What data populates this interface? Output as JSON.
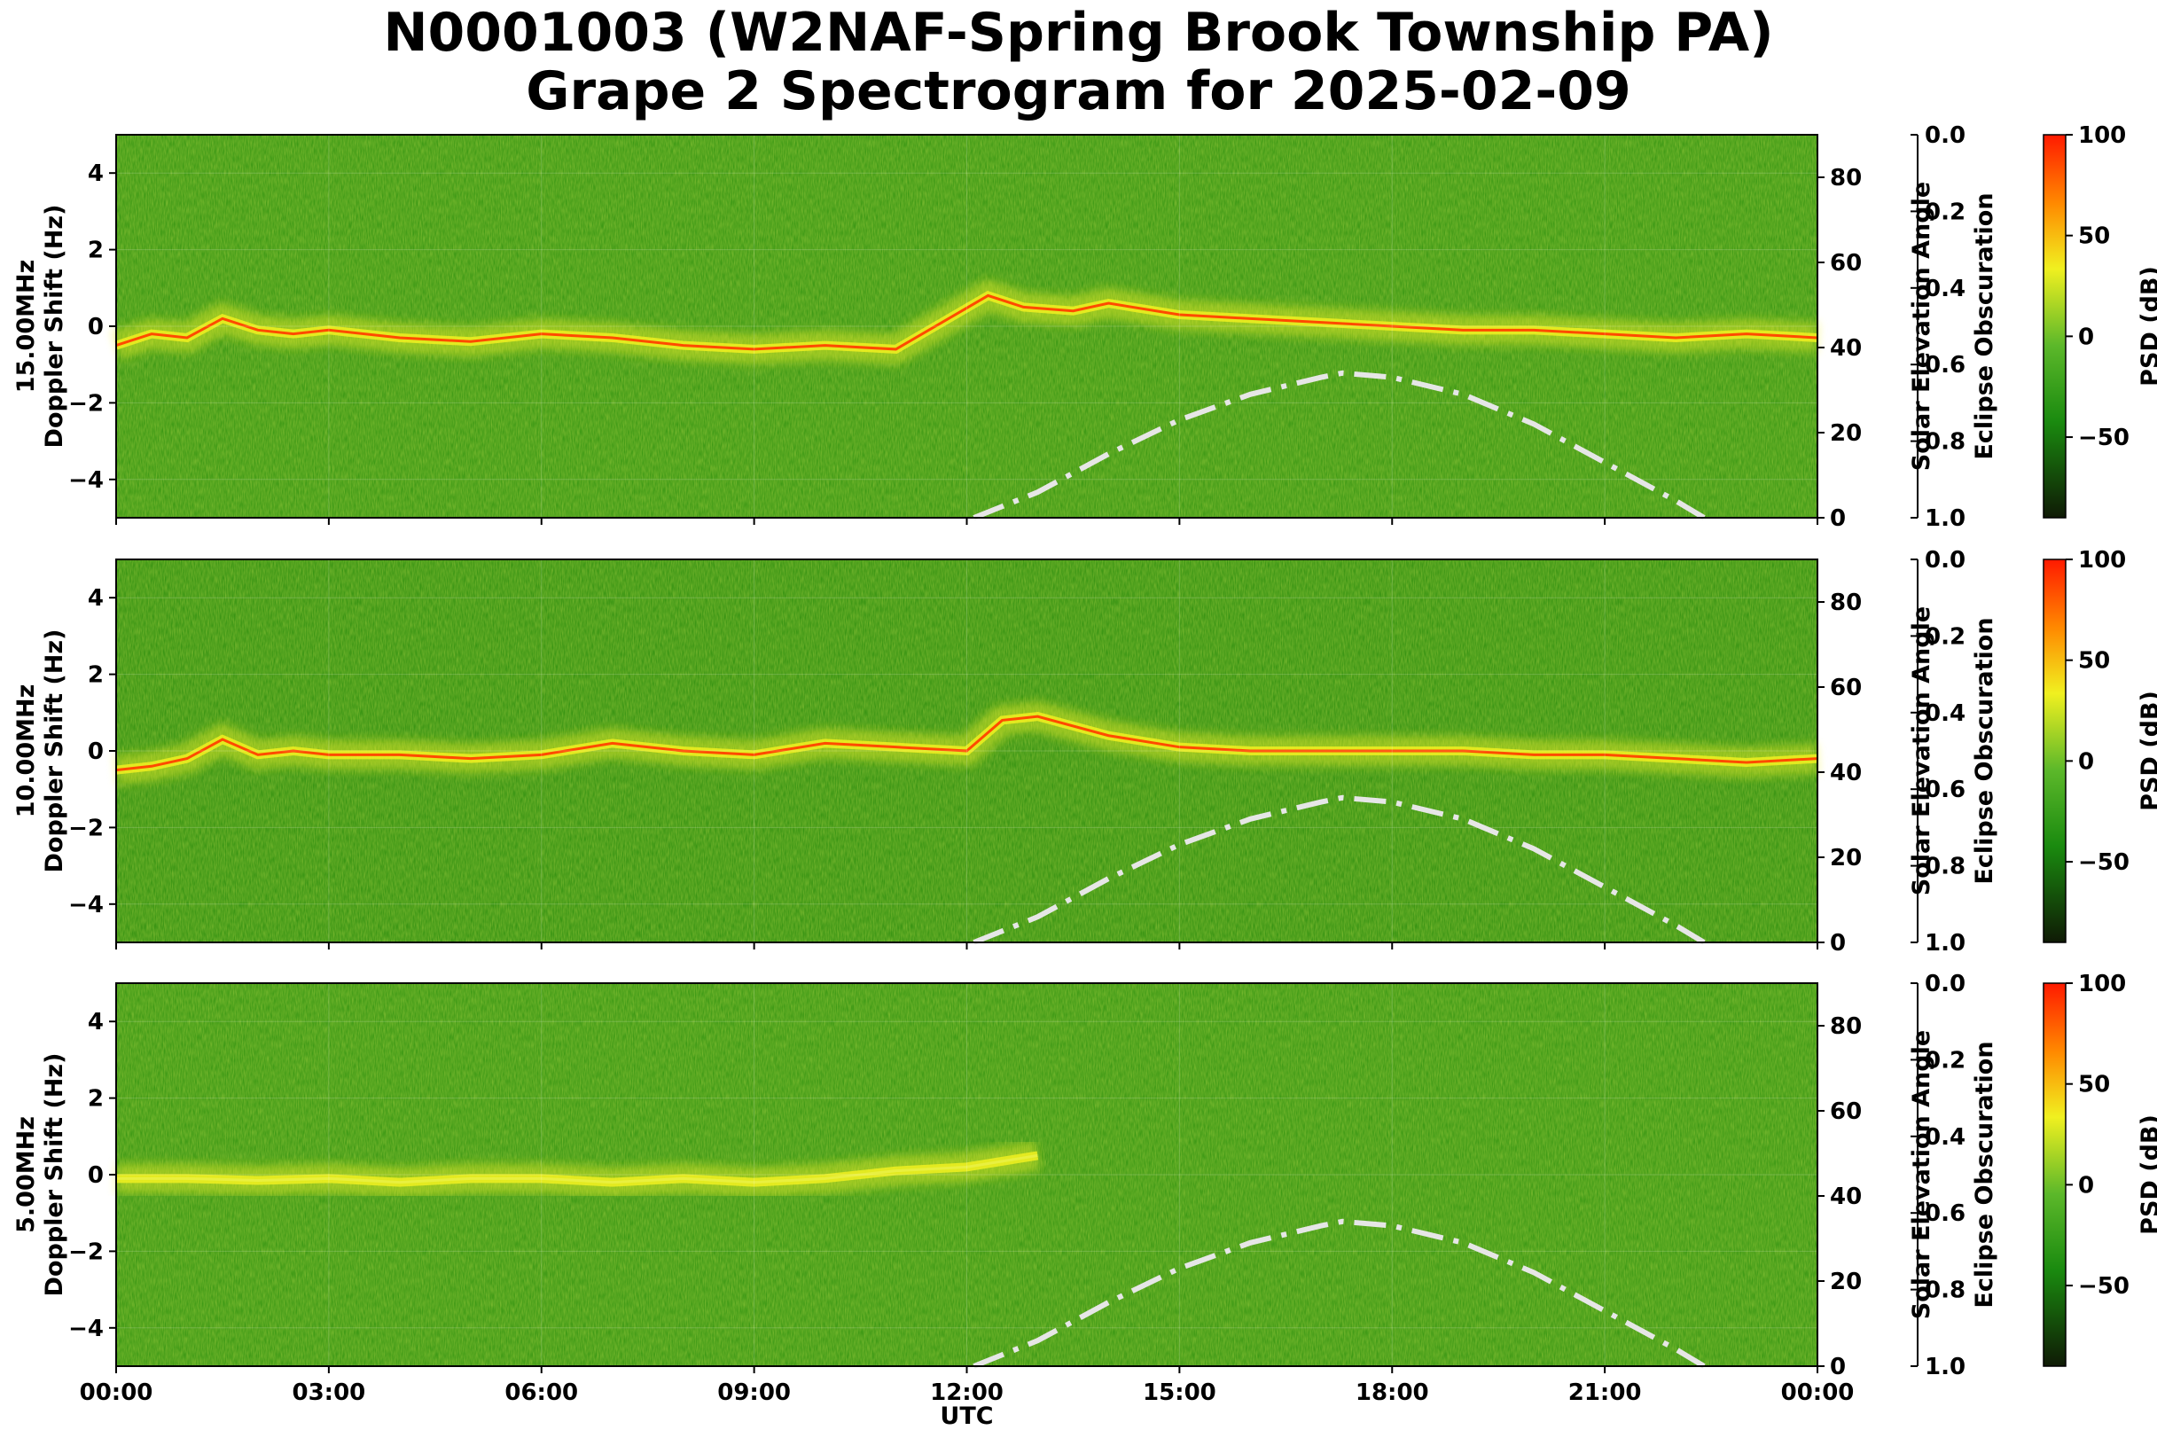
{
  "title": {
    "line1": "N0001003 (W2NAF-Spring Brook Township PA)",
    "line2": "Grape 2 Spectrogram for 2025-02-09"
  },
  "colors": {
    "spectrogram_low": "#0f1a05",
    "spectrogram_mid": "#1a8a0f",
    "spectrogram_high_a": "#f0f020",
    "spectrogram_high_b": "#ff1a00",
    "solar_curve": "#e6e6e6"
  },
  "chart_data": {
    "type": "heatmap",
    "xlabel": "UTC",
    "x_ticks": [
      "00:00",
      "03:00",
      "06:00",
      "09:00",
      "12:00",
      "15:00",
      "18:00",
      "21:00",
      "00:00"
    ],
    "x_range_hours": [
      0,
      24
    ],
    "legend": "none",
    "grid": true,
    "panels": [
      {
        "ylabel_line1": "15.00MHz",
        "ylabel_line2": "Doppler Shift (Hz)",
        "y_ticks": [
          "4",
          "2",
          "0",
          "−2",
          "−4"
        ],
        "ylim": [
          -5,
          5
        ],
        "right_axis_label": "Solar Elevation Angle",
        "right_axis_ticks": [
          "80",
          "60",
          "40",
          "20",
          "0"
        ],
        "right_ylim": [
          0,
          90
        ],
        "eclipse_label": "Eclipse Obscuration",
        "eclipse_ticks": [
          "0.0",
          "0.2",
          "0.4",
          "0.6",
          "0.8",
          "1.0"
        ],
        "colorbar_label": "PSD (dB)",
        "colorbar_ticks": [
          "100",
          "50",
          "0",
          "−50"
        ],
        "colorbar_range": [
          -90,
          100
        ],
        "doppler_trace": [
          [
            0,
            -0.5
          ],
          [
            0.5,
            -0.2
          ],
          [
            1,
            -0.3
          ],
          [
            1.5,
            0.2
          ],
          [
            2,
            -0.1
          ],
          [
            2.5,
            -0.2
          ],
          [
            3,
            -0.1
          ],
          [
            4,
            -0.3
          ],
          [
            5,
            -0.4
          ],
          [
            6,
            -0.2
          ],
          [
            7,
            -0.3
          ],
          [
            8,
            -0.5
          ],
          [
            9,
            -0.6
          ],
          [
            10,
            -0.5
          ],
          [
            11,
            -0.6
          ],
          [
            12.3,
            0.8
          ],
          [
            12.8,
            0.5
          ],
          [
            13.5,
            0.4
          ],
          [
            14,
            0.6
          ],
          [
            15,
            0.3
          ],
          [
            16,
            0.2
          ],
          [
            17,
            0.1
          ],
          [
            18,
            0.0
          ],
          [
            19,
            -0.1
          ],
          [
            20,
            -0.1
          ],
          [
            21,
            -0.2
          ],
          [
            22,
            -0.3
          ],
          [
            23,
            -0.2
          ],
          [
            24,
            -0.3
          ]
        ],
        "trace_range_hours": [
          0,
          24
        ]
      },
      {
        "ylabel_line1": "10.00MHz",
        "ylabel_line2": "Doppler Shift (Hz)",
        "y_ticks": [
          "4",
          "2",
          "0",
          "−2",
          "−4"
        ],
        "ylim": [
          -5,
          5
        ],
        "right_axis_label": "Solar Elevation Angle",
        "right_axis_ticks": [
          "80",
          "60",
          "40",
          "20",
          "0"
        ],
        "right_ylim": [
          0,
          90
        ],
        "eclipse_label": "Eclipse Obscuration",
        "eclipse_ticks": [
          "0.0",
          "0.2",
          "0.4",
          "0.6",
          "0.8",
          "1.0"
        ],
        "colorbar_label": "PSD (dB)",
        "colorbar_ticks": [
          "100",
          "50",
          "0",
          "−50"
        ],
        "colorbar_range": [
          -90,
          100
        ],
        "doppler_trace": [
          [
            0,
            -0.5
          ],
          [
            0.5,
            -0.4
          ],
          [
            1,
            -0.2
          ],
          [
            1.5,
            0.3
          ],
          [
            2,
            -0.1
          ],
          [
            2.5,
            0.0
          ],
          [
            3,
            -0.1
          ],
          [
            4,
            -0.1
          ],
          [
            5,
            -0.2
          ],
          [
            6,
            -0.1
          ],
          [
            7,
            0.2
          ],
          [
            8,
            0.0
          ],
          [
            9,
            -0.1
          ],
          [
            10,
            0.2
          ],
          [
            11,
            0.1
          ],
          [
            12,
            0.0
          ],
          [
            12.5,
            0.8
          ],
          [
            13,
            0.9
          ],
          [
            14,
            0.4
          ],
          [
            15,
            0.1
          ],
          [
            16,
            0.0
          ],
          [
            17,
            0.0
          ],
          [
            18,
            0.0
          ],
          [
            19,
            0.0
          ],
          [
            20,
            -0.1
          ],
          [
            21,
            -0.1
          ],
          [
            22,
            -0.2
          ],
          [
            23,
            -0.3
          ],
          [
            24,
            -0.2
          ]
        ],
        "trace_range_hours": [
          0,
          24
        ]
      },
      {
        "ylabel_line1": "5.00MHz",
        "ylabel_line2": "Doppler Shift (Hz)",
        "y_ticks": [
          "4",
          "2",
          "0",
          "−2",
          "−4"
        ],
        "ylim": [
          -5,
          5
        ],
        "right_axis_label": "Solar Elevation Angle",
        "right_axis_ticks": [
          "80",
          "60",
          "40",
          "20",
          "0"
        ],
        "right_ylim": [
          0,
          90
        ],
        "eclipse_label": "Eclipse Obscuration",
        "eclipse_ticks": [
          "0.0",
          "0.2",
          "0.4",
          "0.6",
          "0.8",
          "1.0"
        ],
        "colorbar_label": "PSD (dB)",
        "colorbar_ticks": [
          "100",
          "50",
          "0",
          "−50"
        ],
        "colorbar_range": [
          -90,
          100
        ],
        "doppler_trace": [
          [
            0,
            -0.1
          ],
          [
            1,
            -0.1
          ],
          [
            2,
            -0.15
          ],
          [
            3,
            -0.1
          ],
          [
            4,
            -0.2
          ],
          [
            5,
            -0.1
          ],
          [
            6,
            -0.1
          ],
          [
            7,
            -0.2
          ],
          [
            8,
            -0.1
          ],
          [
            9,
            -0.2
          ],
          [
            10,
            -0.1
          ],
          [
            11,
            0.1
          ],
          [
            12,
            0.2
          ],
          [
            13,
            0.5
          ]
        ],
        "trace_range_hours": [
          0,
          13
        ]
      }
    ],
    "solar_elevation": [
      [
        12.1,
        0
      ],
      [
        13,
        6
      ],
      [
        14,
        15
      ],
      [
        15,
        23
      ],
      [
        16,
        29
      ],
      [
        17,
        33
      ],
      [
        17.3,
        34
      ],
      [
        18,
        33
      ],
      [
        19,
        29
      ],
      [
        20,
        22
      ],
      [
        21,
        13
      ],
      [
        22,
        4
      ],
      [
        22.4,
        0
      ]
    ]
  }
}
